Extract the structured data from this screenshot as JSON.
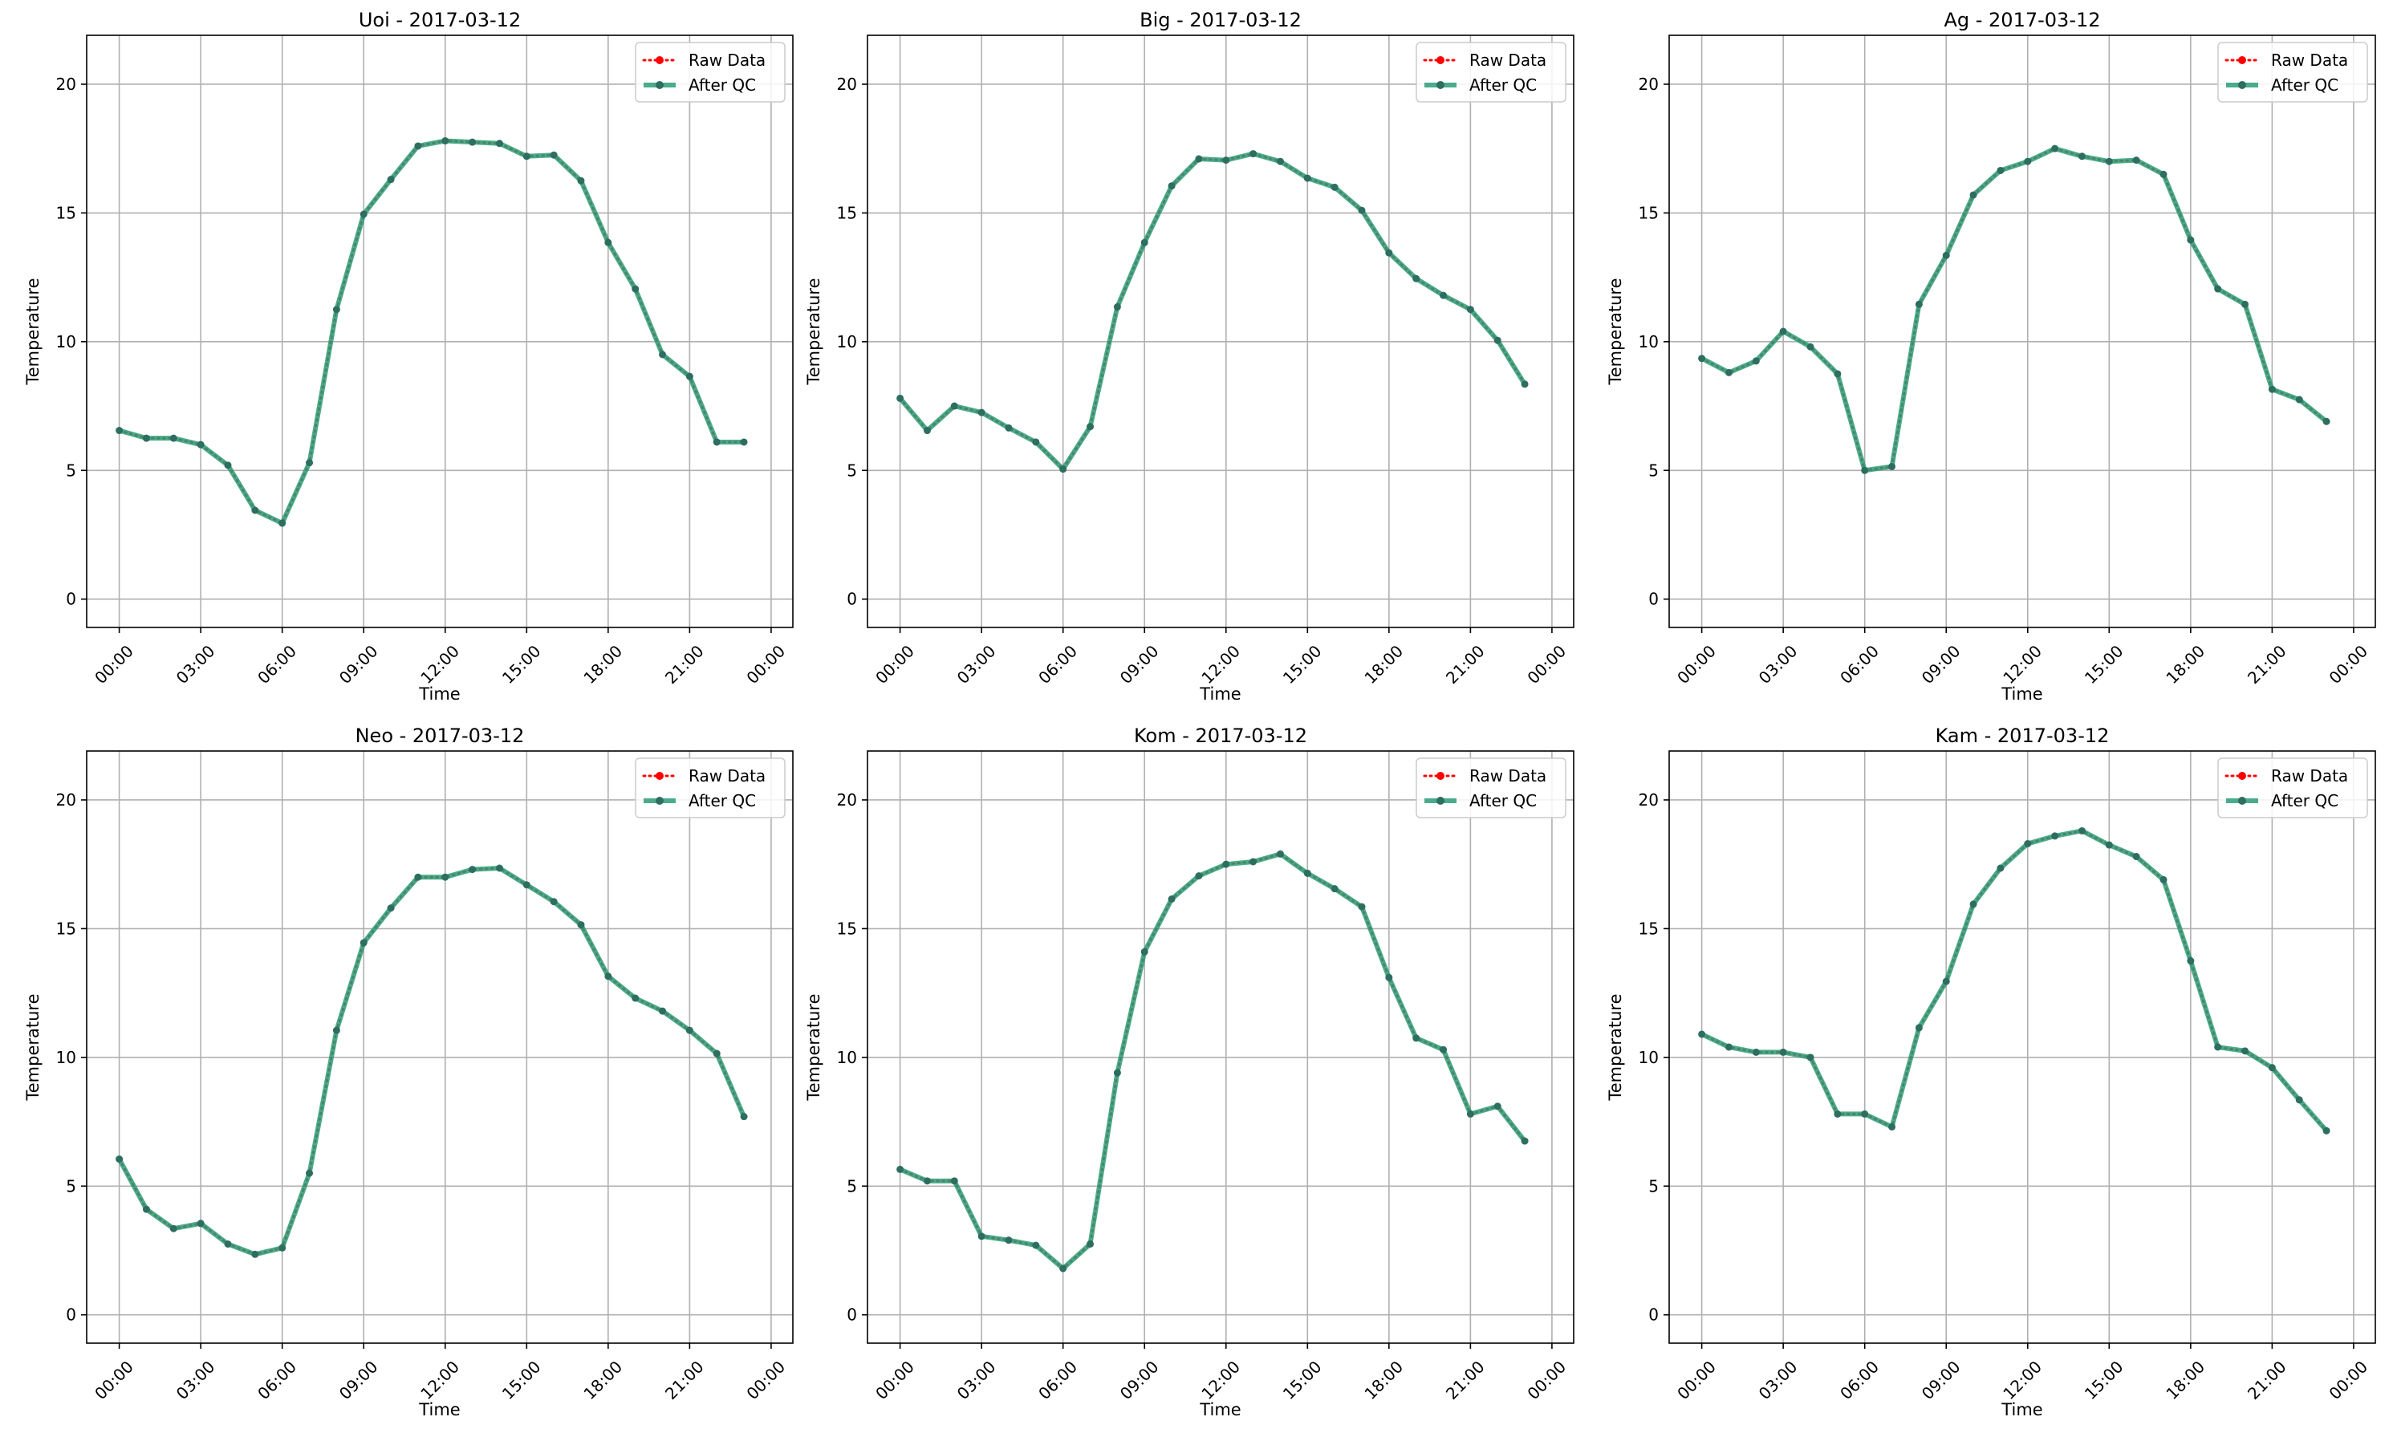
{
  "figure": {
    "x_tick_labels": [
      "00:00",
      "03:00",
      "06:00",
      "09:00",
      "12:00",
      "15:00",
      "18:00",
      "21:00",
      "00:00"
    ],
    "y_tick_labels": [
      "0",
      "5",
      "10",
      "15",
      "20"
    ],
    "legend": [
      "Raw Data",
      "After QC"
    ],
    "colors": {
      "raw": "#ff0000",
      "qc": "#2a9d78",
      "qc_marker": "#2d6e60",
      "grid": "#b0b0b0"
    }
  },
  "chart_data": [
    {
      "type": "line",
      "title": "Uoi - 2017-03-12",
      "xlabel": "Time",
      "ylabel": "Temperature",
      "xlim": [
        -1.2,
        24.8
      ],
      "ylim": [
        -1.1,
        21.9
      ],
      "grid": true,
      "legend_position": "top-right",
      "x": [
        0,
        1,
        2,
        3,
        4,
        5,
        6,
        7,
        8,
        9,
        10,
        11,
        12,
        13,
        14,
        15,
        16,
        17,
        18,
        19,
        20,
        21,
        22,
        23
      ],
      "series": [
        {
          "name": "Raw Data",
          "values": [
            6.55,
            6.25,
            6.25,
            6.0,
            5.2,
            3.45,
            2.95,
            5.3,
            11.25,
            14.95,
            16.3,
            17.6,
            17.8,
            17.75,
            17.7,
            17.2,
            17.25,
            16.25,
            13.85,
            12.05,
            9.5,
            8.65,
            6.1,
            6.1
          ]
        },
        {
          "name": "After QC",
          "values": [
            6.55,
            6.25,
            6.25,
            6.0,
            5.2,
            3.45,
            2.95,
            5.3,
            11.25,
            14.95,
            16.3,
            17.6,
            17.8,
            17.75,
            17.7,
            17.2,
            17.25,
            16.25,
            13.85,
            12.05,
            9.5,
            8.65,
            6.1,
            6.1
          ]
        }
      ]
    },
    {
      "type": "line",
      "title": "Big - 2017-03-12",
      "xlabel": "Time",
      "ylabel": "Temperature",
      "xlim": [
        -1.2,
        24.8
      ],
      "ylim": [
        -1.1,
        21.9
      ],
      "grid": true,
      "legend_position": "top-right",
      "x": [
        0,
        1,
        2,
        3,
        4,
        5,
        6,
        7,
        8,
        9,
        10,
        11,
        12,
        13,
        14,
        15,
        16,
        17,
        18,
        19,
        20,
        21,
        22,
        23
      ],
      "series": [
        {
          "name": "Raw Data",
          "values": [
            7.8,
            6.55,
            7.5,
            7.25,
            6.65,
            6.1,
            5.05,
            6.7,
            11.35,
            13.85,
            16.05,
            17.1,
            17.05,
            17.3,
            17.0,
            16.35,
            16.0,
            15.1,
            13.45,
            12.45,
            11.8,
            11.25,
            10.05,
            8.35
          ]
        },
        {
          "name": "After QC",
          "values": [
            7.8,
            6.55,
            7.5,
            7.25,
            6.65,
            6.1,
            5.05,
            6.7,
            11.35,
            13.85,
            16.05,
            17.1,
            17.05,
            17.3,
            17.0,
            16.35,
            16.0,
            15.1,
            13.45,
            12.45,
            11.8,
            11.25,
            10.05,
            8.35
          ]
        }
      ]
    },
    {
      "type": "line",
      "title": "Ag - 2017-03-12",
      "xlabel": "Time",
      "ylabel": "Temperature",
      "xlim": [
        -1.2,
        24.8
      ],
      "ylim": [
        -1.1,
        21.9
      ],
      "grid": true,
      "legend_position": "top-right",
      "x": [
        0,
        1,
        2,
        3,
        4,
        5,
        6,
        7,
        8,
        9,
        10,
        11,
        12,
        13,
        14,
        15,
        16,
        17,
        18,
        19,
        20,
        21,
        22,
        23
      ],
      "series": [
        {
          "name": "Raw Data",
          "values": [
            9.35,
            8.8,
            9.25,
            10.4,
            9.8,
            8.75,
            5.0,
            5.15,
            11.45,
            13.35,
            15.7,
            16.65,
            17.0,
            17.5,
            17.2,
            17.0,
            17.05,
            16.5,
            13.95,
            12.05,
            11.45,
            8.15,
            7.75,
            6.9
          ]
        },
        {
          "name": "After QC",
          "values": [
            9.35,
            8.8,
            9.25,
            10.4,
            9.8,
            8.75,
            5.0,
            5.15,
            11.45,
            13.35,
            15.7,
            16.65,
            17.0,
            17.5,
            17.2,
            17.0,
            17.05,
            16.5,
            13.95,
            12.05,
            11.45,
            8.15,
            7.75,
            6.9
          ]
        }
      ]
    },
    {
      "type": "line",
      "title": "Neo - 2017-03-12",
      "xlabel": "Time",
      "ylabel": "Temperature",
      "xlim": [
        -1.2,
        24.8
      ],
      "ylim": [
        -1.1,
        21.9
      ],
      "grid": true,
      "legend_position": "top-right",
      "x": [
        0,
        1,
        2,
        3,
        4,
        5,
        6,
        7,
        8,
        9,
        10,
        11,
        12,
        13,
        14,
        15,
        16,
        17,
        18,
        19,
        20,
        21,
        22,
        23
      ],
      "series": [
        {
          "name": "Raw Data",
          "values": [
            6.05,
            4.1,
            3.35,
            3.55,
            2.75,
            2.35,
            2.6,
            5.5,
            11.05,
            14.45,
            15.8,
            17.0,
            17.0,
            17.3,
            17.35,
            16.7,
            16.05,
            15.15,
            13.15,
            12.3,
            11.8,
            11.05,
            10.15,
            7.7
          ]
        },
        {
          "name": "After QC",
          "values": [
            6.05,
            4.1,
            3.35,
            3.55,
            2.75,
            2.35,
            2.6,
            5.5,
            11.05,
            14.45,
            15.8,
            17.0,
            17.0,
            17.3,
            17.35,
            16.7,
            16.05,
            15.15,
            13.15,
            12.3,
            11.8,
            11.05,
            10.15,
            7.7
          ]
        }
      ]
    },
    {
      "type": "line",
      "title": "Kom - 2017-03-12",
      "xlabel": "Time",
      "ylabel": "Temperature",
      "xlim": [
        -1.2,
        24.8
      ],
      "ylim": [
        -1.1,
        21.9
      ],
      "grid": true,
      "legend_position": "top-right",
      "x": [
        0,
        1,
        2,
        3,
        4,
        5,
        6,
        7,
        8,
        9,
        10,
        11,
        12,
        13,
        14,
        15,
        16,
        17,
        18,
        19,
        20,
        21,
        22,
        23
      ],
      "series": [
        {
          "name": "Raw Data",
          "values": [
            5.65,
            5.2,
            5.2,
            3.05,
            2.9,
            2.7,
            1.8,
            2.75,
            9.4,
            14.1,
            16.15,
            17.05,
            17.5,
            17.6,
            17.9,
            17.15,
            16.55,
            15.85,
            13.1,
            10.75,
            10.3,
            7.8,
            8.1,
            6.75
          ]
        },
        {
          "name": "After QC",
          "values": [
            5.65,
            5.2,
            5.2,
            3.05,
            2.9,
            2.7,
            1.8,
            2.75,
            9.4,
            14.1,
            16.15,
            17.05,
            17.5,
            17.6,
            17.9,
            17.15,
            16.55,
            15.85,
            13.1,
            10.75,
            10.3,
            7.8,
            8.1,
            6.75
          ]
        }
      ]
    },
    {
      "type": "line",
      "title": "Kam - 2017-03-12",
      "xlabel": "Time",
      "ylabel": "Temperature",
      "xlim": [
        -1.2,
        24.8
      ],
      "ylim": [
        -1.1,
        21.9
      ],
      "grid": true,
      "legend_position": "top-right",
      "x": [
        0,
        1,
        2,
        3,
        4,
        5,
        6,
        7,
        8,
        9,
        10,
        11,
        12,
        13,
        14,
        15,
        16,
        17,
        18,
        19,
        20,
        21,
        22,
        23
      ],
      "series": [
        {
          "name": "Raw Data",
          "values": [
            10.9,
            10.4,
            10.2,
            10.2,
            10.0,
            7.8,
            7.8,
            7.3,
            11.15,
            12.95,
            15.95,
            17.35,
            18.3,
            18.6,
            18.8,
            18.25,
            17.8,
            16.9,
            13.75,
            10.4,
            10.25,
            9.6,
            8.35,
            7.15
          ]
        },
        {
          "name": "After QC",
          "values": [
            10.9,
            10.4,
            10.2,
            10.2,
            10.0,
            7.8,
            7.8,
            7.3,
            11.15,
            12.95,
            15.95,
            17.35,
            18.3,
            18.6,
            18.8,
            18.25,
            17.8,
            16.9,
            13.75,
            10.4,
            10.25,
            9.6,
            8.35,
            7.15
          ]
        }
      ]
    }
  ]
}
